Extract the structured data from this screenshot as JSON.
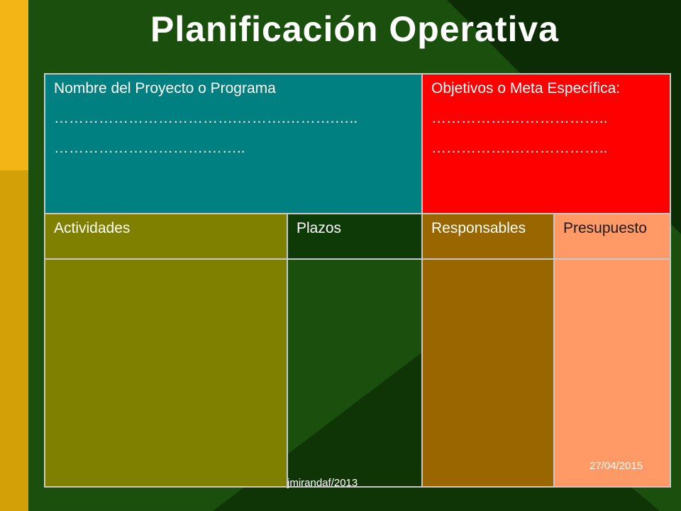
{
  "slide": {
    "title": "Planificación Operativa",
    "colors": {
      "background": "#0c2c06",
      "left_stripe_top": "#f2b515",
      "left_stripe_bottom": "#d3a007",
      "green_triangle": "#1e5a10",
      "project_cell": "#008080",
      "objectives_cell": "#ff0000",
      "activities_cell": "#808000",
      "responsables_cell": "#996600",
      "presupuesto_cell": "#ff9966"
    }
  },
  "table": {
    "project": {
      "label": "Nombre del Proyecto o Programa",
      "line1": "……………………………….……….……….…..",
      "line2": "………………………….…….."
    },
    "objectives": {
      "label": "Objetivos o Meta Específica:",
      "line1": "…………….………………..",
      "line2": "…………….……………….."
    },
    "headers": {
      "activities": "Actividades",
      "deadlines": "Plazos",
      "responsibles": "Responsables",
      "budget": "Presupuesto"
    }
  },
  "footer": {
    "author": "jmirandaf/2013",
    "date": "27/04/2015"
  }
}
